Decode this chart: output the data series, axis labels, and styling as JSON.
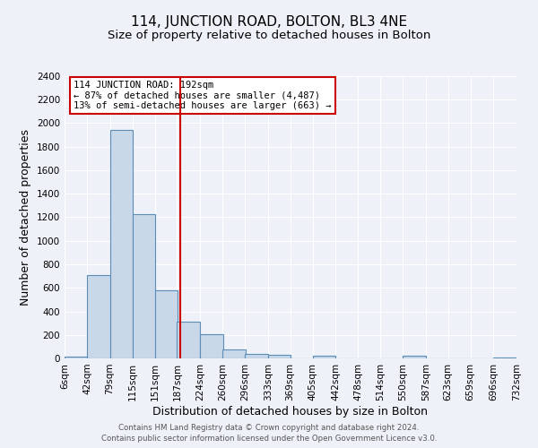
{
  "title": "114, JUNCTION ROAD, BOLTON, BL3 4NE",
  "subtitle": "Size of property relative to detached houses in Bolton",
  "xlabel": "Distribution of detached houses by size in Bolton",
  "ylabel": "Number of detached properties",
  "footer_line1": "Contains HM Land Registry data © Crown copyright and database right 2024.",
  "footer_line2": "Contains public sector information licensed under the Open Government Licence v3.0.",
  "bar_left_edges": [
    6,
    42,
    79,
    115,
    151,
    187,
    224,
    260,
    296,
    333,
    369,
    405,
    442,
    478,
    514,
    550,
    587,
    623,
    659,
    696
  ],
  "bar_heights": [
    15,
    705,
    1940,
    1230,
    580,
    310,
    205,
    80,
    40,
    30,
    0,
    20,
    0,
    0,
    0,
    20,
    0,
    0,
    0,
    5
  ],
  "bin_width": 37,
  "bar_color": "#c8d8e8",
  "bar_edge_color": "#5b8db8",
  "property_sqm": 192,
  "vline_color": "#cc0000",
  "annotation_line1": "114 JUNCTION ROAD: 192sqm",
  "annotation_line2": "← 87% of detached houses are smaller (4,487)",
  "annotation_line3": "13% of semi-detached houses are larger (663) →",
  "annotation_box_color": "white",
  "annotation_box_edge": "#cc0000",
  "ylim": [
    0,
    2400
  ],
  "yticks": [
    0,
    200,
    400,
    600,
    800,
    1000,
    1200,
    1400,
    1600,
    1800,
    2000,
    2200,
    2400
  ],
  "xtick_labels": [
    "6sqm",
    "42sqm",
    "79sqm",
    "115sqm",
    "151sqm",
    "187sqm",
    "224sqm",
    "260sqm",
    "296sqm",
    "333sqm",
    "369sqm",
    "405sqm",
    "442sqm",
    "478sqm",
    "514sqm",
    "550sqm",
    "587sqm",
    "623sqm",
    "659sqm",
    "696sqm",
    "732sqm"
  ],
  "background_color": "#eef2f8",
  "plot_bg_color": "#eef2f8",
  "grid_color": "white",
  "title_fontsize": 11,
  "subtitle_fontsize": 9.5,
  "axis_label_fontsize": 9,
  "tick_fontsize": 7.5,
  "footer_fontsize": 6.2
}
